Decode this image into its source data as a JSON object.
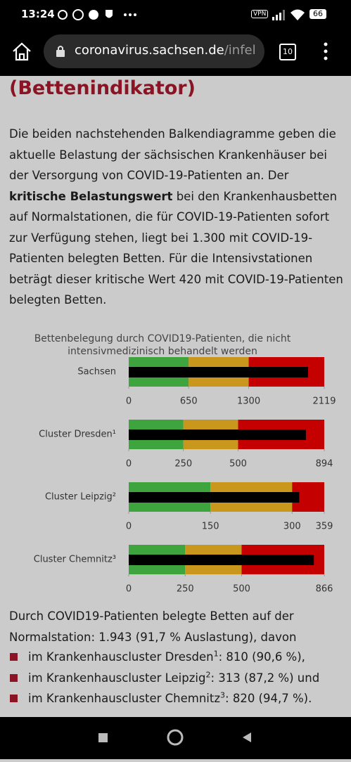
{
  "status_bar": {
    "time": "13:24",
    "vpn": "VPN",
    "battery": "66"
  },
  "browser": {
    "url_host": "coronavirus.sachsen.de",
    "url_path": "/infel",
    "tab_count": "10"
  },
  "article": {
    "heading": "(Bettenindikator)",
    "intro": [
      {
        "text": "Die beiden nachstehenden Balkendiagramme geben die aktuelle Belastung der sächsischen Krankenhäuser bei der Versorgung von COVID-19-Patienten an. Der ",
        "bold": false
      },
      {
        "text": "kritische Belastungswert",
        "bold": true
      },
      {
        "text": " bei den Krankenhausbetten auf Normalstationen, die für COVID-19-Patienten sofort zur Verfügung stehen, liegt bei 1.300 mit COVID-19-Patienten belegten Betten. Für die Intensivstationen beträgt dieser kritische Wert 420 mit COVID-19-Patienten belegten Betten.",
        "bold": false
      }
    ],
    "summary": "Durch COVID19-Patienten belegte Betten auf der Normalstation: 1.943 (91,7 % Auslastung), davon",
    "bullets": [
      {
        "text": "im Krankenhauscluster Dresden",
        "sup": "1",
        "rest": ": 810 (90,6 %),"
      },
      {
        "text": "im Krankenhauscluster Leipzig",
        "sup": "2",
        "rest": ": 313 (87,2 %) und"
      },
      {
        "text": "im Krankenhauscluster Chemnitz",
        "sup": "3",
        "rest": ": 820 (94,7 %)."
      }
    ]
  },
  "chart": {
    "title": [
      "Bettenbelegung durch COVID19-Patienten, die nicht",
      "intensivmedizinisch behandelt werden"
    ],
    "band_colors": [
      "#3ea53e",
      "#c9971c",
      "#c40000"
    ],
    "bar_color": "#000000",
    "panels": [
      {
        "label": "Sachsen",
        "value": 1943,
        "xlim": [
          0,
          2119
        ],
        "ticks": [
          0,
          650,
          1300,
          2119
        ]
      },
      {
        "label": "Cluster Dresden¹",
        "value": 810,
        "xlim": [
          0,
          894
        ],
        "ticks": [
          0,
          250,
          500,
          894
        ]
      },
      {
        "label": "Cluster Leipzig²",
        "value": 313,
        "xlim": [
          0,
          359
        ],
        "ticks": [
          0,
          150,
          300,
          359
        ]
      },
      {
        "label": "Cluster Chemnitz³",
        "value": 820,
        "xlim": [
          0,
          866
        ],
        "ticks": [
          0,
          250,
          500,
          866
        ]
      }
    ]
  }
}
